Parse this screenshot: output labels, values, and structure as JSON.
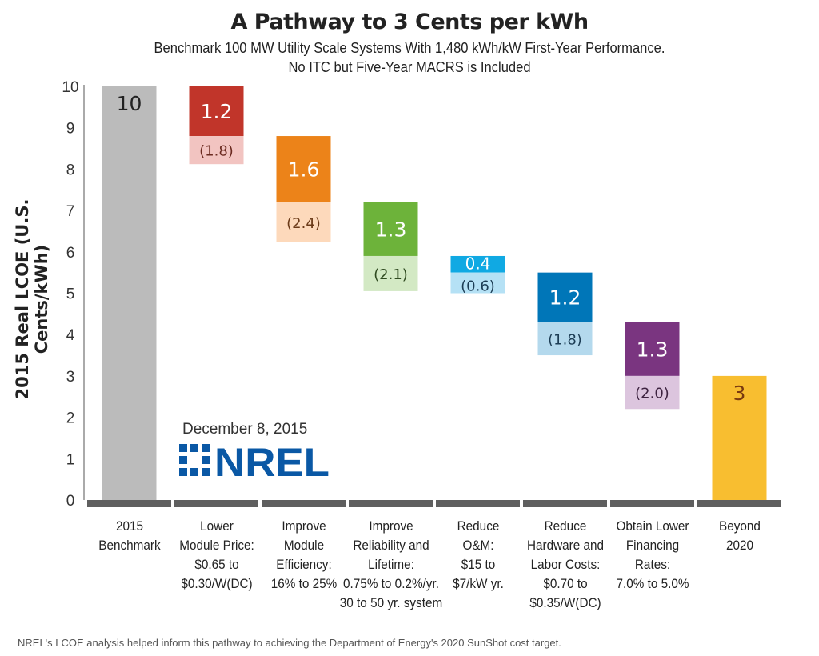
{
  "chart_data": {
    "type": "bar",
    "subtype": "waterfall",
    "title": "A Pathway to 3 Cents per kWh",
    "subtitle_lines": [
      "Benchmark 100 MW Utility Scale Systems With 1,480 kWh/kW First-Year Performance.",
      "No ITC but Five-Year MACRS is Included"
    ],
    "ylabel": "2015 Real LCOE (U.S. Cents/kWh)",
    "ylim": [
      0,
      10
    ],
    "yticks": [
      "0",
      "1",
      "2",
      "3",
      "4",
      "5",
      "6",
      "7",
      "8",
      "9",
      "10"
    ],
    "grid": false,
    "categories": [
      [
        "2015",
        "Benchmark"
      ],
      [
        "Lower",
        "Module Price:",
        "$0.65 to",
        "$0.30/W(DC)"
      ],
      [
        "Improve",
        "Module",
        "Efficiency:",
        "16% to 25%"
      ],
      [
        "Improve",
        "Reliability and",
        "Lifetime:",
        "0.75% to 0.2%/yr.",
        "30 to 50 yr. system"
      ],
      [
        "Reduce",
        "O&M:",
        "$15 to",
        "$7/kW yr."
      ],
      [
        "Reduce",
        "Hardware and",
        "Labor Costs:",
        "$0.70 to",
        "$0.35/W(DC)"
      ],
      [
        "Obtain Lower",
        "Financing",
        "Rates:",
        "7.0% to 5.0%"
      ],
      [
        "Beyond",
        "2020"
      ]
    ],
    "bars": [
      {
        "kind": "total",
        "value": 10,
        "label": "10",
        "color": "#bbbbbb",
        "label_color": "#222222"
      },
      {
        "kind": "step",
        "value": 1.2,
        "label": "1.2",
        "secondary_label": "(1.8)",
        "color": "#c1352a",
        "light_color": "#f2c4c1",
        "label_color": "#ffffff",
        "secondary_label_color": "#6b2a20"
      },
      {
        "kind": "step",
        "value": 1.6,
        "label": "1.6",
        "secondary_label": "(2.4)",
        "color": "#ec8319",
        "light_color": "#fdd9bb",
        "label_color": "#ffffff",
        "secondary_label_color": "#6b3a18"
      },
      {
        "kind": "step",
        "value": 1.3,
        "label": "1.3",
        "secondary_label": "(2.1)",
        "color": "#6db33a",
        "light_color": "#d3e9c4",
        "label_color": "#ffffff",
        "secondary_label_color": "#2f4a20"
      },
      {
        "kind": "step",
        "value": 0.4,
        "label": "0.4",
        "secondary_label": "(0.6)",
        "color": "#10a9e3",
        "light_color": "#b5e1f5",
        "label_color": "#ffffff",
        "secondary_label_color": "#1c3d55"
      },
      {
        "kind": "step",
        "value": 1.2,
        "label": "1.2",
        "secondary_label": "(1.8)",
        "color": "#0076b8",
        "light_color": "#b4d9ed",
        "label_color": "#ffffff",
        "secondary_label_color": "#1c3d55"
      },
      {
        "kind": "step",
        "value": 1.3,
        "label": "1.3",
        "secondary_label": "(2.0)",
        "color": "#7a3580",
        "light_color": "#dcc5de",
        "label_color": "#ffffff",
        "secondary_label_color": "#3d2340"
      },
      {
        "kind": "total",
        "value": 3,
        "label": "3",
        "color": "#f8be30",
        "label_color": "#7a3a10"
      }
    ]
  },
  "annotation": {
    "date": "December 8, 2015",
    "logo_text": "NREL",
    "logo_color": "#0a58a5"
  },
  "footer": "NREL's LCOE analysis helped inform this pathway to achieving the Department of Energy's 2020 SunShot cost target."
}
